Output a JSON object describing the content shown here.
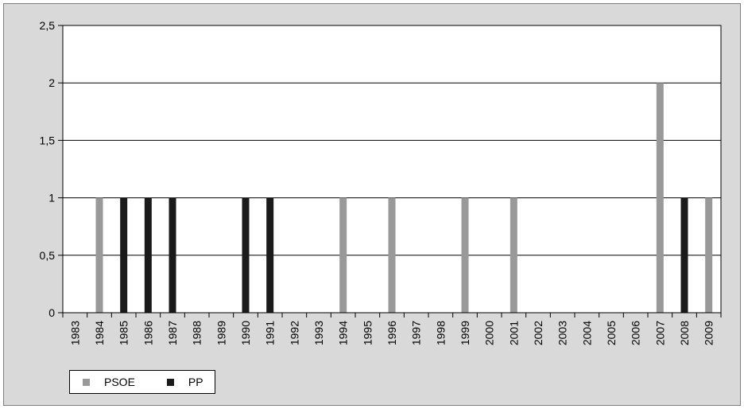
{
  "chart_data": {
    "type": "bar",
    "categories": [
      "1983",
      "1984",
      "1985",
      "1986",
      "1987",
      "1988",
      "1989",
      "1990",
      "1991",
      "1992",
      "1993",
      "1994",
      "1995",
      "1996",
      "1997",
      "1998",
      "1999",
      "2000",
      "2001",
      "2002",
      "2003",
      "2004",
      "2005",
      "2006",
      "2007",
      "2008",
      "2009"
    ],
    "series": [
      {
        "name": "PSOE",
        "color": "#999999",
        "values": [
          0,
          1,
          0,
          0,
          0,
          0,
          0,
          0,
          0,
          0,
          0,
          1,
          0,
          1,
          0,
          0,
          1,
          0,
          1,
          0,
          0,
          0,
          0,
          0,
          2,
          0,
          1
        ]
      },
      {
        "name": "PP",
        "color": "#1a1a1a",
        "values": [
          0,
          0,
          1,
          1,
          1,
          0,
          0,
          1,
          1,
          0,
          0,
          0,
          0,
          0,
          0,
          0,
          0,
          0,
          0,
          0,
          0,
          0,
          0,
          0,
          0,
          1,
          0
        ]
      }
    ],
    "title": "",
    "xlabel": "",
    "ylabel": "",
    "ylim": [
      0,
      2.5
    ],
    "yticks": [
      "0",
      "0,5",
      "1",
      "1,5",
      "2",
      "2,5"
    ],
    "ytick_values": [
      0,
      0.5,
      1,
      1.5,
      2,
      2.5
    ],
    "grid": true,
    "legend_position": "bottom-left",
    "colors": {
      "frame_background": "#d9d9d9",
      "plot_background": "#ffffff",
      "gridline": "#000000"
    }
  }
}
